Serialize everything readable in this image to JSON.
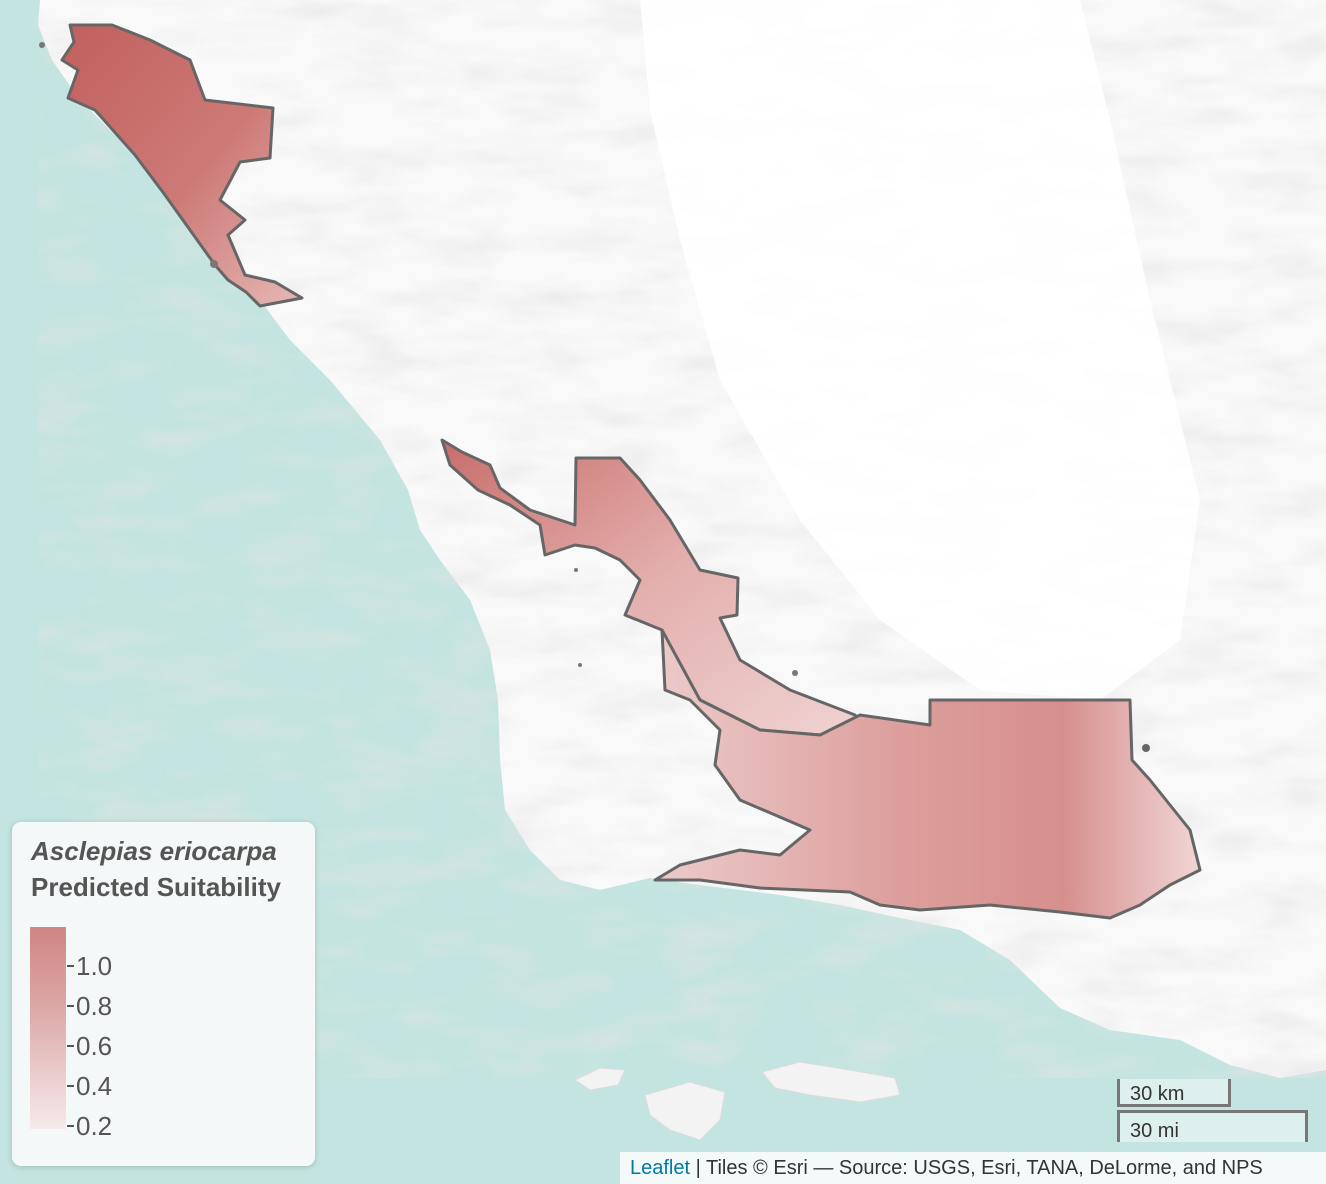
{
  "legend": {
    "species": "Asclepias eriocarpa",
    "subtitle": "Predicted Suitability",
    "ticks": [
      "1.0",
      "0.8",
      "0.6",
      "0.4",
      "0.2"
    ]
  },
  "scale": {
    "km": "30 km",
    "mi": "30 mi"
  },
  "attribution": {
    "link": "Leaflet",
    "separator": " | ",
    "text": "Tiles © Esri — Source: USGS, Esri, TANA, DeLorme, and NPS"
  },
  "colors": {
    "ocean": "#c3e4e0",
    "land": "#f9f9f9",
    "high_suitability": "#c46e6b",
    "low_suitability": "#f5e4e4",
    "range_outline": "#666666"
  }
}
